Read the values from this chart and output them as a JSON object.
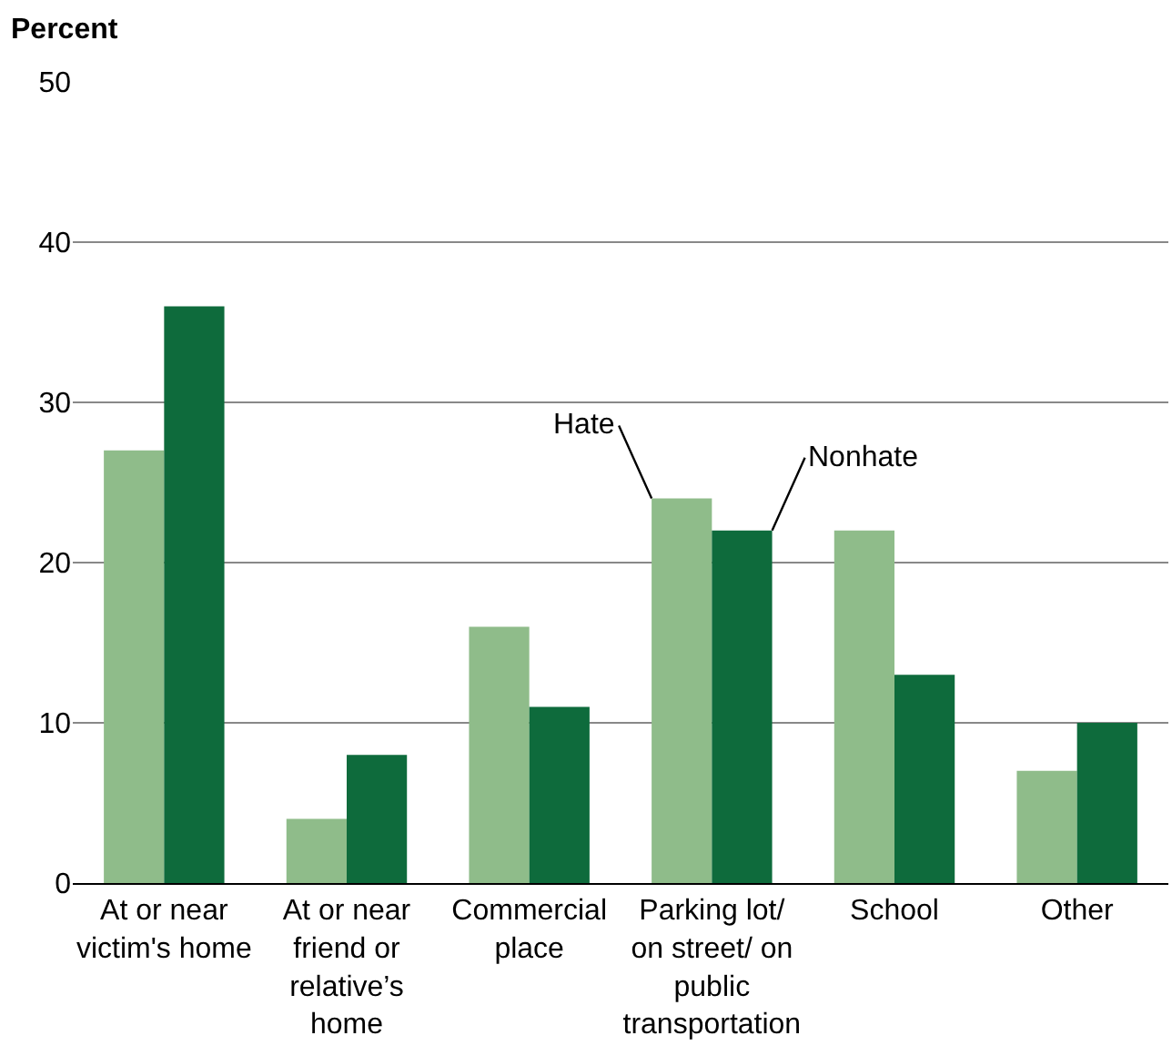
{
  "chart_data": {
    "type": "bar",
    "ylabel": "Percent",
    "categories": [
      "At or near victim's home",
      "At or near friend or relative’s home",
      "Commercial place",
      "Parking lot/ on street/ on public transportation",
      "School",
      "Other"
    ],
    "series": [
      {
        "name": "Hate",
        "color": "#8fbc8a",
        "values": [
          27,
          4,
          16,
          24,
          22,
          7
        ]
      },
      {
        "name": "Nonhate",
        "color": "#0e6b3c",
        "values": [
          36,
          8,
          11,
          22,
          13,
          10
        ]
      }
    ],
    "ylim": [
      0,
      50
    ],
    "yticks": [
      0,
      10,
      20,
      30,
      40,
      50
    ],
    "grid": "y",
    "legend": false
  }
}
